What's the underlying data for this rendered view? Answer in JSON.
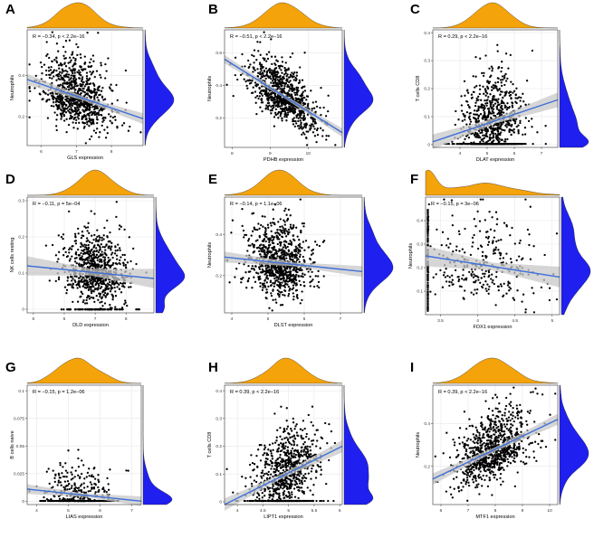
{
  "colors": {
    "top_density": "#f5a30a",
    "right_density": "#1f1ff0",
    "points": "#000000",
    "fit_line": "#3f6fd8",
    "ci_band": "#c8c8c8",
    "grid": "#e8e8e8",
    "frame": "#333333"
  },
  "chart_data": [
    {
      "type": "scatter",
      "panel": "A",
      "annotation": "R = −0.34, p < 2.2e−16",
      "xlabel": "GLS expression",
      "ylabel": "Neutrophils",
      "xlim": [
        5.6,
        8.9
      ],
      "ylim": [
        0.06,
        0.62
      ],
      "xticks": [
        6,
        7,
        8
      ],
      "yticks": [
        0.2,
        0.4
      ],
      "n_points": 900,
      "x_center": 7.0,
      "x_spread": 0.48,
      "fit": {
        "x0": 5.6,
        "y0": 0.38,
        "x1": 8.9,
        "y1": 0.19
      },
      "ci": 0.012,
      "resid_sd": 0.085,
      "floor_fraction": 0
    },
    {
      "type": "scatter",
      "panel": "B",
      "annotation": "R = −0.51, p < 2.2e−16",
      "xlabel": "PDHB expression",
      "ylabel": "Neutrophils",
      "xlim": [
        7.8,
        10.9
      ],
      "ylim": [
        0.02,
        0.74
      ],
      "xticks": [
        8,
        9,
        10
      ],
      "yticks": [
        0.2,
        0.4,
        0.6
      ],
      "n_points": 900,
      "x_center": 9.35,
      "x_spread": 0.45,
      "fit": {
        "x0": 7.8,
        "y0": 0.56,
        "x1": 10.9,
        "y1": 0.11
      },
      "ci": 0.012,
      "resid_sd": 0.085,
      "floor_fraction": 0
    },
    {
      "type": "scatter",
      "panel": "C",
      "annotation": "R = 0.29, p < 2.2e−16",
      "xlabel": "DLAT expression",
      "ylabel": "T cells CD8",
      "xlim": [
        3.0,
        7.6
      ],
      "ylim": [
        -0.01,
        0.41
      ],
      "xticks": [
        4,
        5,
        6,
        7
      ],
      "yticks": [
        0.0,
        0.1,
        0.2,
        0.3,
        0.4
      ],
      "n_points": 900,
      "x_center": 5.2,
      "x_spread": 0.6,
      "fit": {
        "x0": 3.0,
        "y0": 0.01,
        "x1": 7.6,
        "y1": 0.16
      },
      "ci": 0.012,
      "resid_sd": 0.075,
      "floor_fraction": 0.22
    },
    {
      "type": "scatter",
      "panel": "D",
      "annotation": "R = −0.11, p = 5e−04",
      "xlabel": "DLD expression",
      "ylabel": "NK cells resting",
      "xlim": [
        4.8,
        8.9
      ],
      "ylim": [
        -0.01,
        0.31
      ],
      "xticks": [
        5,
        6,
        7,
        8
      ],
      "yticks": [
        0.0,
        0.1,
        0.2,
        0.3
      ],
      "n_points": 900,
      "x_center": 7.0,
      "x_spread": 0.5,
      "fit": {
        "x0": 4.8,
        "y0": 0.12,
        "x1": 8.9,
        "y1": 0.085
      },
      "ci": 0.012,
      "resid_sd": 0.05,
      "floor_fraction": 0.08
    },
    {
      "type": "scatter",
      "panel": "E",
      "annotation": "R = −0.14, p = 1.1e−06",
      "xlabel": "DLST expression",
      "ylabel": "Neutrophils",
      "xlim": [
        3.8,
        7.6
      ],
      "ylim": [
        0.02,
        0.58
      ],
      "xticks": [
        4,
        5,
        6,
        7
      ],
      "yticks": [
        0.2,
        0.4
      ],
      "n_points": 900,
      "x_center": 5.3,
      "x_spread": 0.45,
      "fit": {
        "x0": 3.8,
        "y0": 0.29,
        "x1": 7.6,
        "y1": 0.22
      },
      "ci": 0.012,
      "resid_sd": 0.09,
      "floor_fraction": 0
    },
    {
      "type": "scatter",
      "panel": "F",
      "annotation": "R = −0.15, p = 3e−06",
      "xlabel": "FDX1 expression",
      "ylabel": "Neutrophils",
      "xlim": [
        3.3,
        5.1
      ],
      "ylim": [
        0.0,
        0.5
      ],
      "xticks": [
        3.5,
        4.0,
        4.5,
        5.0
      ],
      "yticks": [
        0.1,
        0.2,
        0.3,
        0.4
      ],
      "n_points": 300,
      "x_center": 4.1,
      "x_spread": 0.42,
      "fit": {
        "x0": 3.3,
        "y0": 0.25,
        "x1": 5.1,
        "y1": 0.16
      },
      "ci": 0.02,
      "resid_sd": 0.1,
      "floor_fraction": 0,
      "stack_at_x": 3.33,
      "stack_count": 160
    },
    {
      "type": "scatter",
      "panel": "G",
      "annotation": "R = −0.15, p = 1.2e−06",
      "xlabel": "LIAS expression",
      "ylabel": "B cells naive",
      "xlim": [
        3.7,
        7.3
      ],
      "ylim": [
        -0.003,
        0.105
      ],
      "xticks": [
        4,
        5,
        6,
        7
      ],
      "yticks": [
        0.0,
        0.025,
        0.05,
        0.075,
        0.1
      ],
      "n_points": 500,
      "x_center": 5.3,
      "x_spread": 0.55,
      "fit": {
        "x0": 3.7,
        "y0": 0.011,
        "x1": 7.3,
        "y1": 0.0
      },
      "ci": 0.002,
      "resid_sd": 0.012,
      "floor_fraction": 0.45
    },
    {
      "type": "scatter",
      "panel": "H",
      "annotation": "R = 0.39, p < 2.2e−16",
      "xlabel": "LIPT1 expression",
      "ylabel": "T cells CD8",
      "xlim": [
        3.75,
        6.05
      ],
      "ylim": [
        -0.01,
        0.42
      ],
      "xticks": [
        4.0,
        4.5,
        5.0,
        5.5,
        6.0
      ],
      "yticks": [
        0.0,
        0.1,
        0.2,
        0.3,
        0.4
      ],
      "n_points": 900,
      "x_center": 4.95,
      "x_spread": 0.32,
      "fit": {
        "x0": 3.75,
        "y0": -0.01,
        "x1": 6.05,
        "y1": 0.2
      },
      "ci": 0.01,
      "resid_sd": 0.07,
      "floor_fraction": 0.18
    },
    {
      "type": "scatter",
      "panel": "I",
      "annotation": "R = 0.39, p < 2.2e−16",
      "xlabel": "MTF1 expression",
      "ylabel": "Neutrophils",
      "xlim": [
        5.7,
        10.3
      ],
      "ylim": [
        0.02,
        0.58
      ],
      "xticks": [
        6,
        7,
        8,
        9,
        10
      ],
      "yticks": [
        0.2,
        0.4
      ],
      "n_points": 900,
      "x_center": 7.9,
      "x_spread": 0.7,
      "fit": {
        "x0": 5.7,
        "y0": 0.14,
        "x1": 10.3,
        "y1": 0.42
      },
      "ci": 0.012,
      "resid_sd": 0.08,
      "floor_fraction": 0
    }
  ]
}
